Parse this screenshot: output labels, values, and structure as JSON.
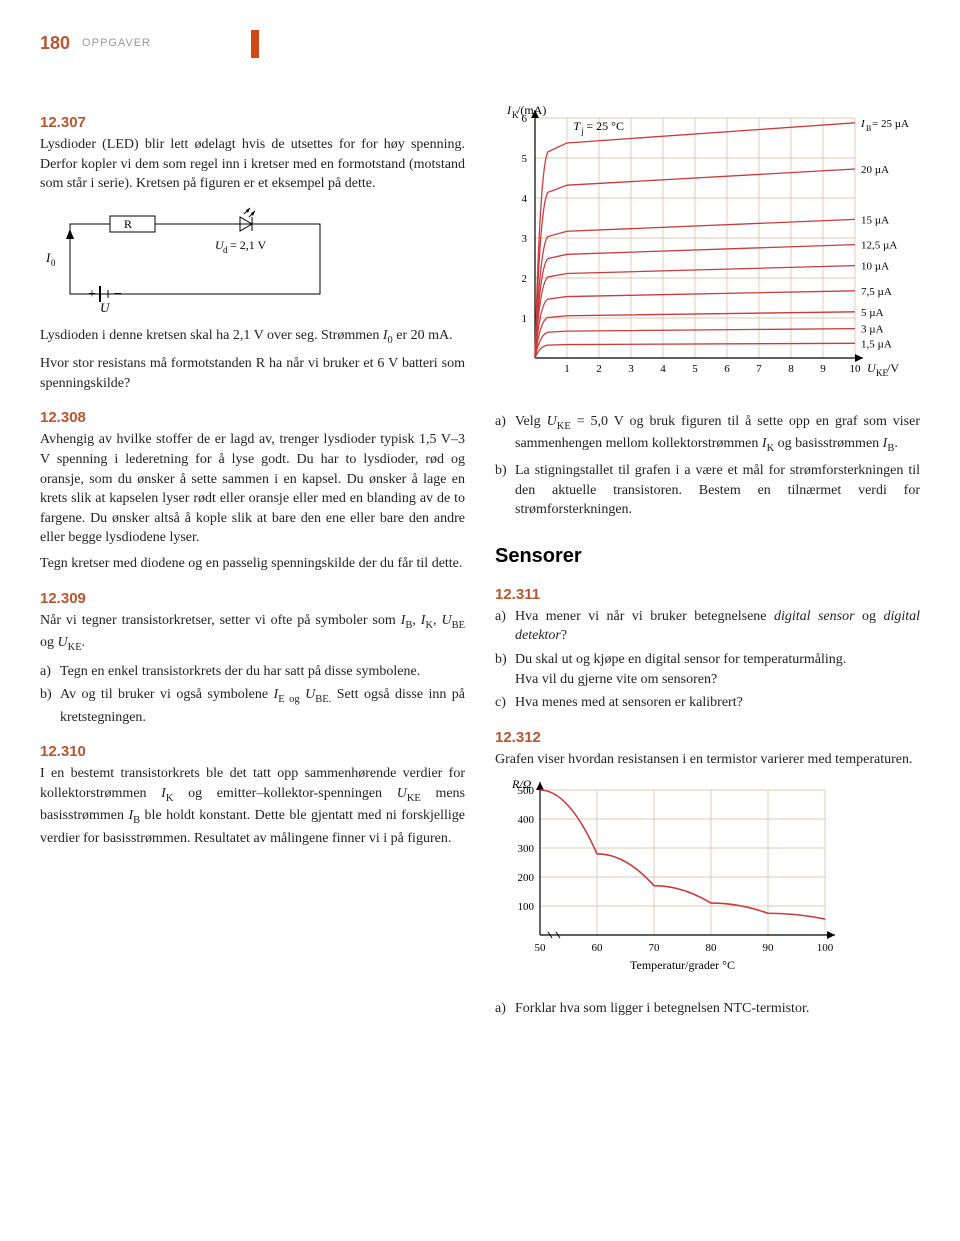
{
  "page_number": "180",
  "section_label": "OPPGAVER",
  "left": {
    "t307": {
      "num": "12.307",
      "p1": "Lysdioder (LED) blir lett ødelagt hvis de utsettes for for høy spenning. Derfor kopler vi dem som regel inn i kretser med en formotstand (motstand som står i serie). Kretsen på figuren er et eksempel på dette.",
      "p2a": "Lysdioden i denne kretsen skal ha 2,1 V over seg. Strømmen ",
      "p2b": " er 20 mA.",
      "p3": "Hvor stor resistans må formotstanden R ha når vi bruker et 6 V batteri som spenningskilde?"
    },
    "circuit": {
      "I0": "I",
      "I0sub": "0",
      "R": "R",
      "U": "U",
      "Ud": "U",
      "Udsub": "d",
      "Udval": " = 2,1 V",
      "box_stroke": "#000",
      "line_w": 1.2
    },
    "t308": {
      "num": "12.308",
      "p1": "Avhengig av hvilke stoffer de er lagd av, trenger lysdioder typisk 1,5 V–3 V spenning i lederetning for å lyse godt. Du har to lysdioder, rød og oransje, som du ønsker å sette sammen i en kapsel. Du ønsker å lage en krets slik at kapselen lyser rødt eller oransje eller med en blanding av de to fargene. Du ønsker altså å kople slik at bare den ene eller bare den andre eller begge lysdiodene lyser.",
      "p2": "Tegn kretser med diodene og en passelig spenningskilde der du får til dette."
    },
    "t309": {
      "num": "12.309",
      "p1a": "Når vi tegner transistorkretser, setter vi ofte på symboler som ",
      "p1b": ".",
      "a": "Tegn en enkel transistorkrets der du har satt på disse symbolene.",
      "b_a": "Av og til bruker vi også symbolene ",
      "b_b": " Sett også disse inn på kretstegningen."
    },
    "t310": {
      "num": "12.310",
      "p1a": "I en bestemt transistorkrets ble det tatt opp sammenhørende verdier for kollektorstrømmen ",
      "p1b": " og emitter–kollektor-spenningen ",
      "p1c": " mens basisstrømmen ",
      "p1d": " ble holdt konstant. Dette ble gjentatt med ni forskjellige verdier for basisstrømmen. Resultatet av målingene finner vi i på figuren."
    }
  },
  "right": {
    "chart": {
      "type": "line",
      "ylabel_a": "I",
      "ylabel_sub": "K",
      "ylabel_b": "/(mA)",
      "xlabel_a": "U",
      "xlabel_sub": "KE",
      "xlabel_b": "/V",
      "temp": "T",
      "temp_sub": "j",
      "temp_val": " = 25 °C",
      "yticks": [
        "1",
        "2",
        "3",
        "4",
        "5",
        "6"
      ],
      "xticks": [
        "1",
        "2",
        "3",
        "4",
        "5",
        "6",
        "7",
        "8",
        "9",
        "10"
      ],
      "curves": [
        {
          "label": "I",
          "sub": "B",
          "val": " = 25 µA",
          "y": 5.6
        },
        {
          "label": "20 µA",
          "y": 4.5
        },
        {
          "label": "15 µA",
          "y": 3.3
        },
        {
          "label": "12,5 µA",
          "y": 2.7
        },
        {
          "label": "10 µA",
          "y": 2.2
        },
        {
          "label": "7,5 µA",
          "y": 1.6
        },
        {
          "label": "5 µA",
          "y": 1.1
        },
        {
          "label": "3 µA",
          "y": 0.7
        },
        {
          "label": "1,5 µA",
          "y": 0.35
        }
      ],
      "grid_color": "#d9b89a",
      "line_color": "#c93a3a",
      "axis_color": "#000",
      "bg": "#ffffff"
    },
    "t310q": {
      "a_a": "Velg ",
      "a_b": " = 5,0 V og bruk figuren til å sette opp en graf som viser sammenhengen mellom kollektorstrømmen ",
      "a_c": " og basisstrømmen ",
      "a_d": ".",
      "b": "La stigningstallet til grafen i a være et mål for strømforsterkningen til den aktuelle transistoren. Bestem en tilnærmet verdi for strømforsterkningen."
    },
    "sensors_title": "Sensorer",
    "t311": {
      "num": "12.311",
      "a_a": "Hva mener vi når vi bruker betegnelsene ",
      "a_b": "digital sensor",
      "a_c": " og ",
      "a_d": "digital detektor",
      "a_e": "?",
      "b": "Du skal ut og kjøpe en digital sensor for temperaturmåling.",
      "b2": "Hva vil du gjerne vite om sensoren?",
      "c": "Hva menes med at sensoren er kalibrert?"
    },
    "t312": {
      "num": "12.312",
      "p1": "Grafen viser hvordan resistansen i en termistor varierer med temperaturen.",
      "a": "Forklar hva som ligger i betegnelsen NTC-termistor."
    },
    "rchart": {
      "type": "line",
      "ylabel": "R/Ω",
      "xlabel": "Temperatur/grader °C",
      "yticks": [
        "100",
        "200",
        "300",
        "400",
        "500"
      ],
      "xticks": [
        "50",
        "60",
        "70",
        "80",
        "90",
        "100"
      ],
      "points": [
        [
          50,
          500
        ],
        [
          60,
          280
        ],
        [
          70,
          170
        ],
        [
          80,
          110
        ],
        [
          90,
          75
        ],
        [
          100,
          55
        ]
      ],
      "grid_color": "#d9b89a",
      "line_color": "#c93a3a",
      "axis_color": "#000"
    }
  }
}
